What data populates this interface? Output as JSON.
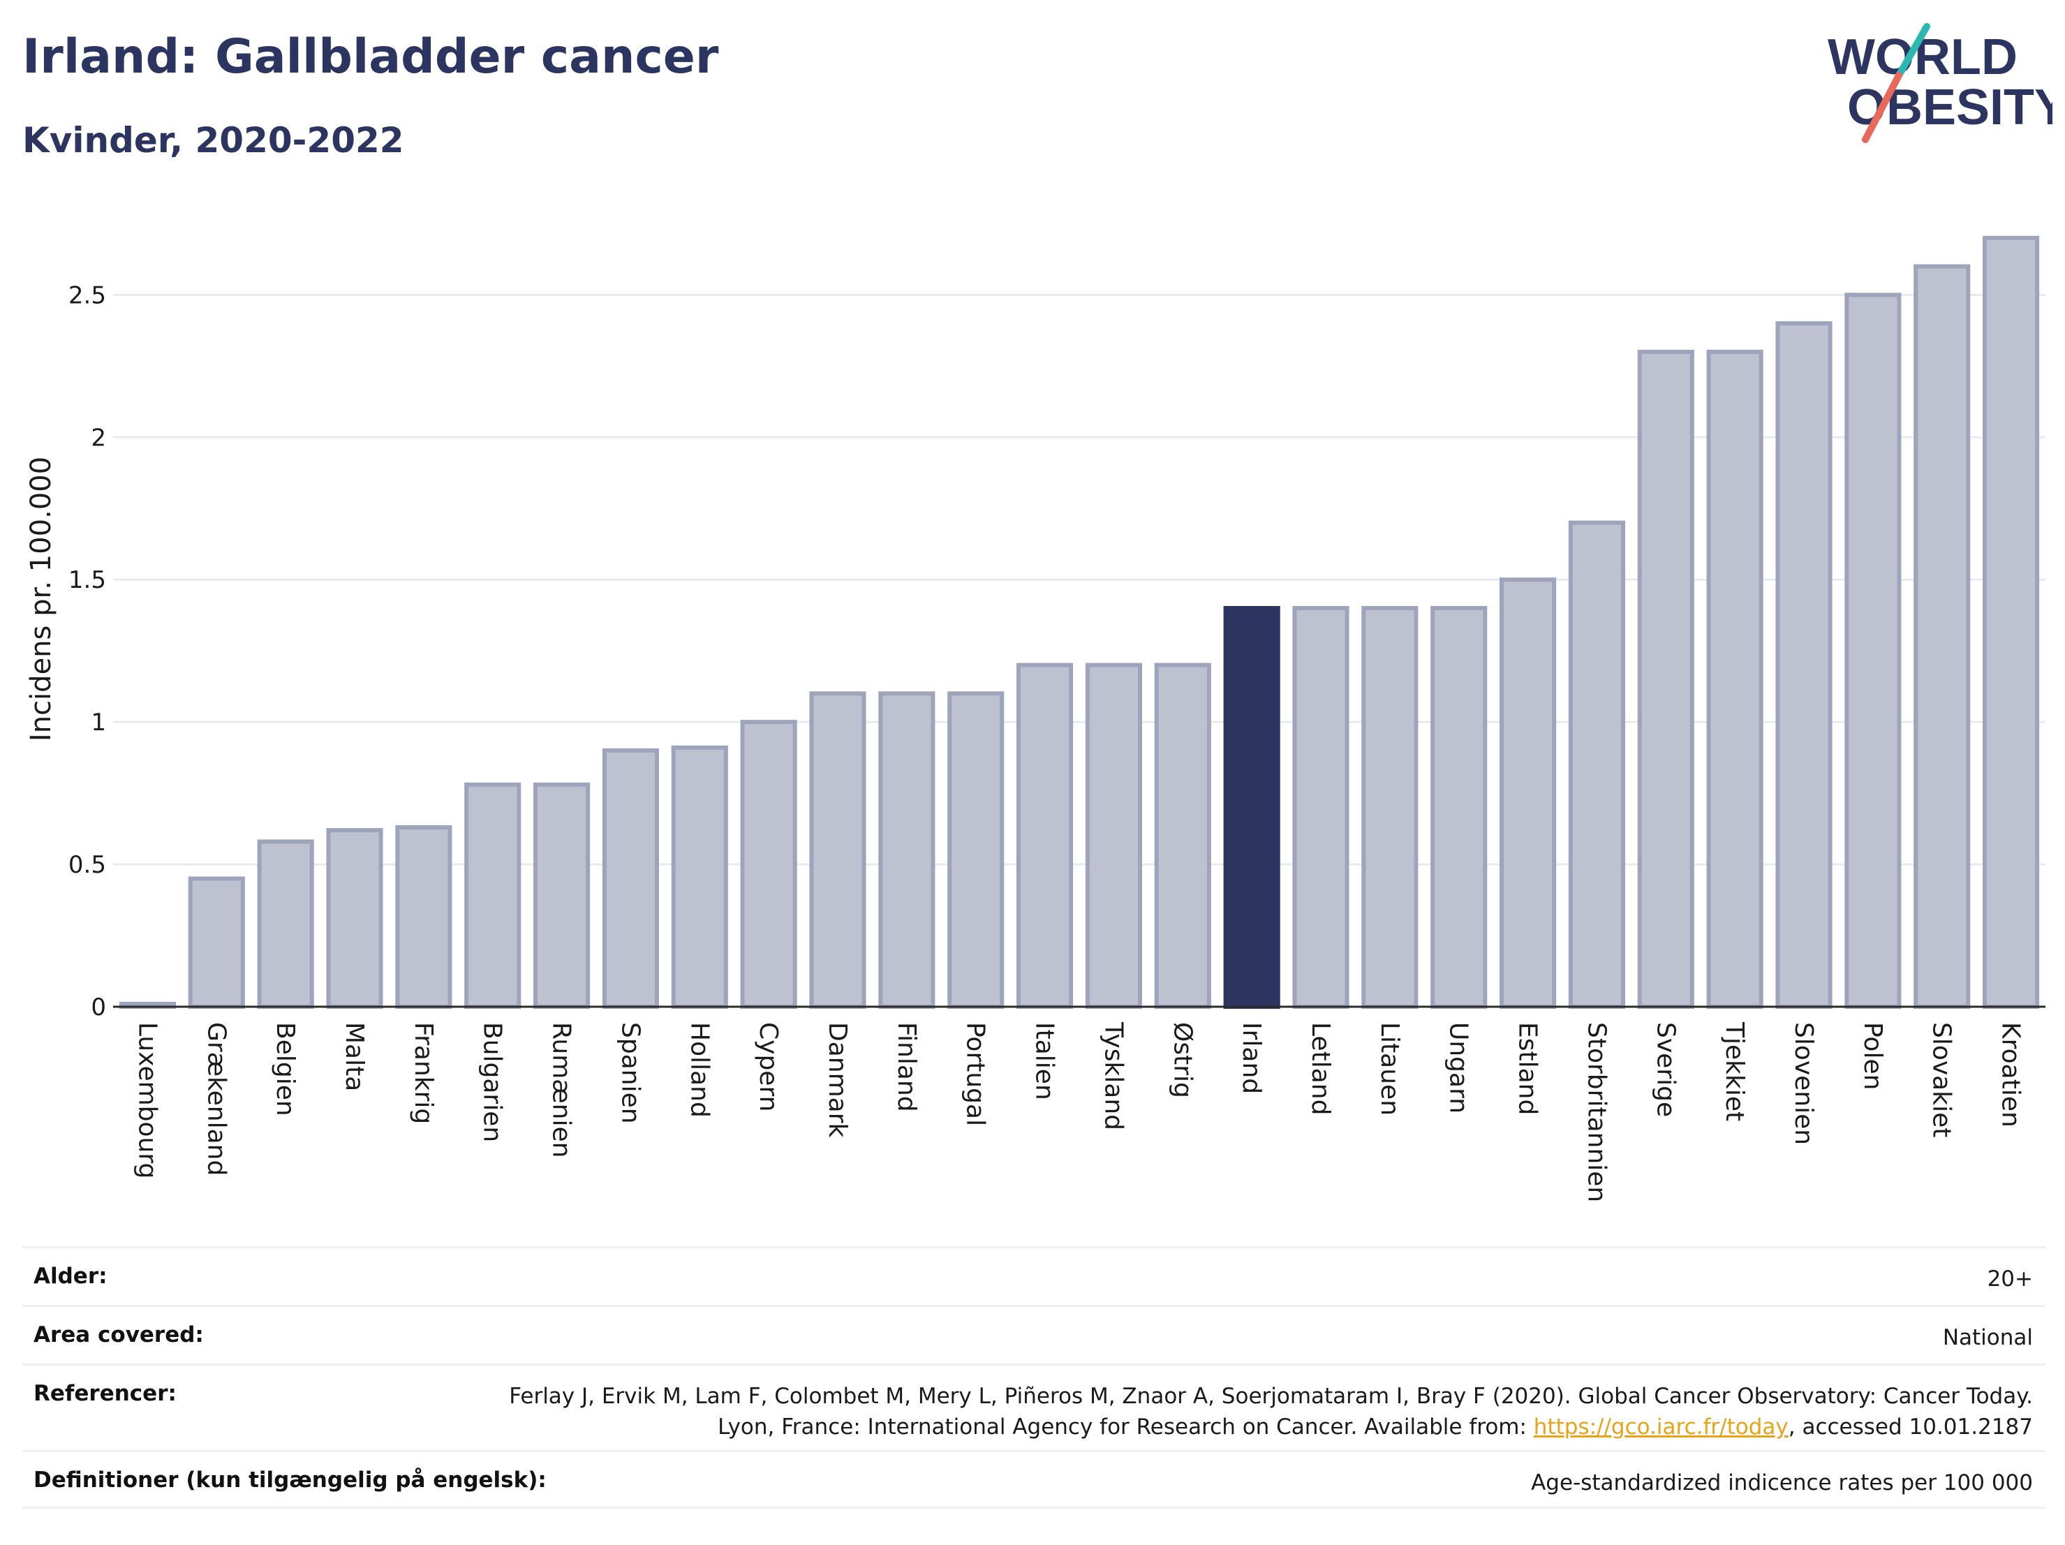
{
  "header": {
    "title": "Irland: Gallbladder cancer",
    "subtitle": "Kvinder, 2020-2022"
  },
  "logo": {
    "line1": "WORLD",
    "line2": "OBESITY"
  },
  "colors": {
    "bar": "#bec2d0",
    "bar_stroke": "#9ea4bb",
    "highlight": "#2b3560",
    "grid": "#e8eaef",
    "text": "#2b3560"
  },
  "chart_data": {
    "type": "bar",
    "ylabel": "Incidens pr. 100.000",
    "xlabel": "",
    "ylim": [
      0,
      2.8
    ],
    "yticks": [
      0,
      0.5,
      1,
      1.5,
      2,
      2.5
    ],
    "ytick_labels": [
      "0",
      "0.5",
      "1",
      "1.5",
      "2",
      "2.5"
    ],
    "grid": "horizontal",
    "highlight": "Irland",
    "categories": [
      "Luxembourg",
      "Grækenland",
      "Belgien",
      "Malta",
      "Frankrig",
      "Bulgarien",
      "Rumænien",
      "Spanien",
      "Holland",
      "Cypern",
      "Danmark",
      "Finland",
      "Portugal",
      "Italien",
      "Tyskland",
      "Østrig",
      "Irland",
      "Letland",
      "Litauen",
      "Ungarn",
      "Estland",
      "Storbritannien",
      "Sverige",
      "Tjekkiet",
      "Slovenien",
      "Polen",
      "Slovakiet",
      "Kroatien"
    ],
    "values": [
      0.01,
      0.45,
      0.58,
      0.62,
      0.63,
      0.78,
      0.78,
      0.9,
      0.91,
      1.0,
      1.1,
      1.1,
      1.1,
      1.2,
      1.2,
      1.2,
      1.4,
      1.4,
      1.4,
      1.4,
      1.5,
      1.7,
      2.3,
      2.3,
      2.4,
      2.5,
      2.6,
      2.7
    ]
  },
  "footer": {
    "age_label": "Alder:",
    "age_value": "20+",
    "area_label": "Area covered:",
    "area_value": "National",
    "ref_label": "Referencer:",
    "ref_text_1": "Ferlay J, Ervik M, Lam F, Colombet M, Mery L, Piñeros M, Znaor A, Soerjomataram I, Bray F (2020). Global Cancer Observatory: Cancer Today. Lyon, France: International Agency for Research on Cancer. Available from: ",
    "ref_link": "https://gco.iarc.fr/today",
    "ref_text_2": ", accessed 10.01.2187",
    "def_label": "Definitioner (kun tilgængelig på engelsk):",
    "def_value": "Age-standardized indicence rates per 100 000"
  }
}
